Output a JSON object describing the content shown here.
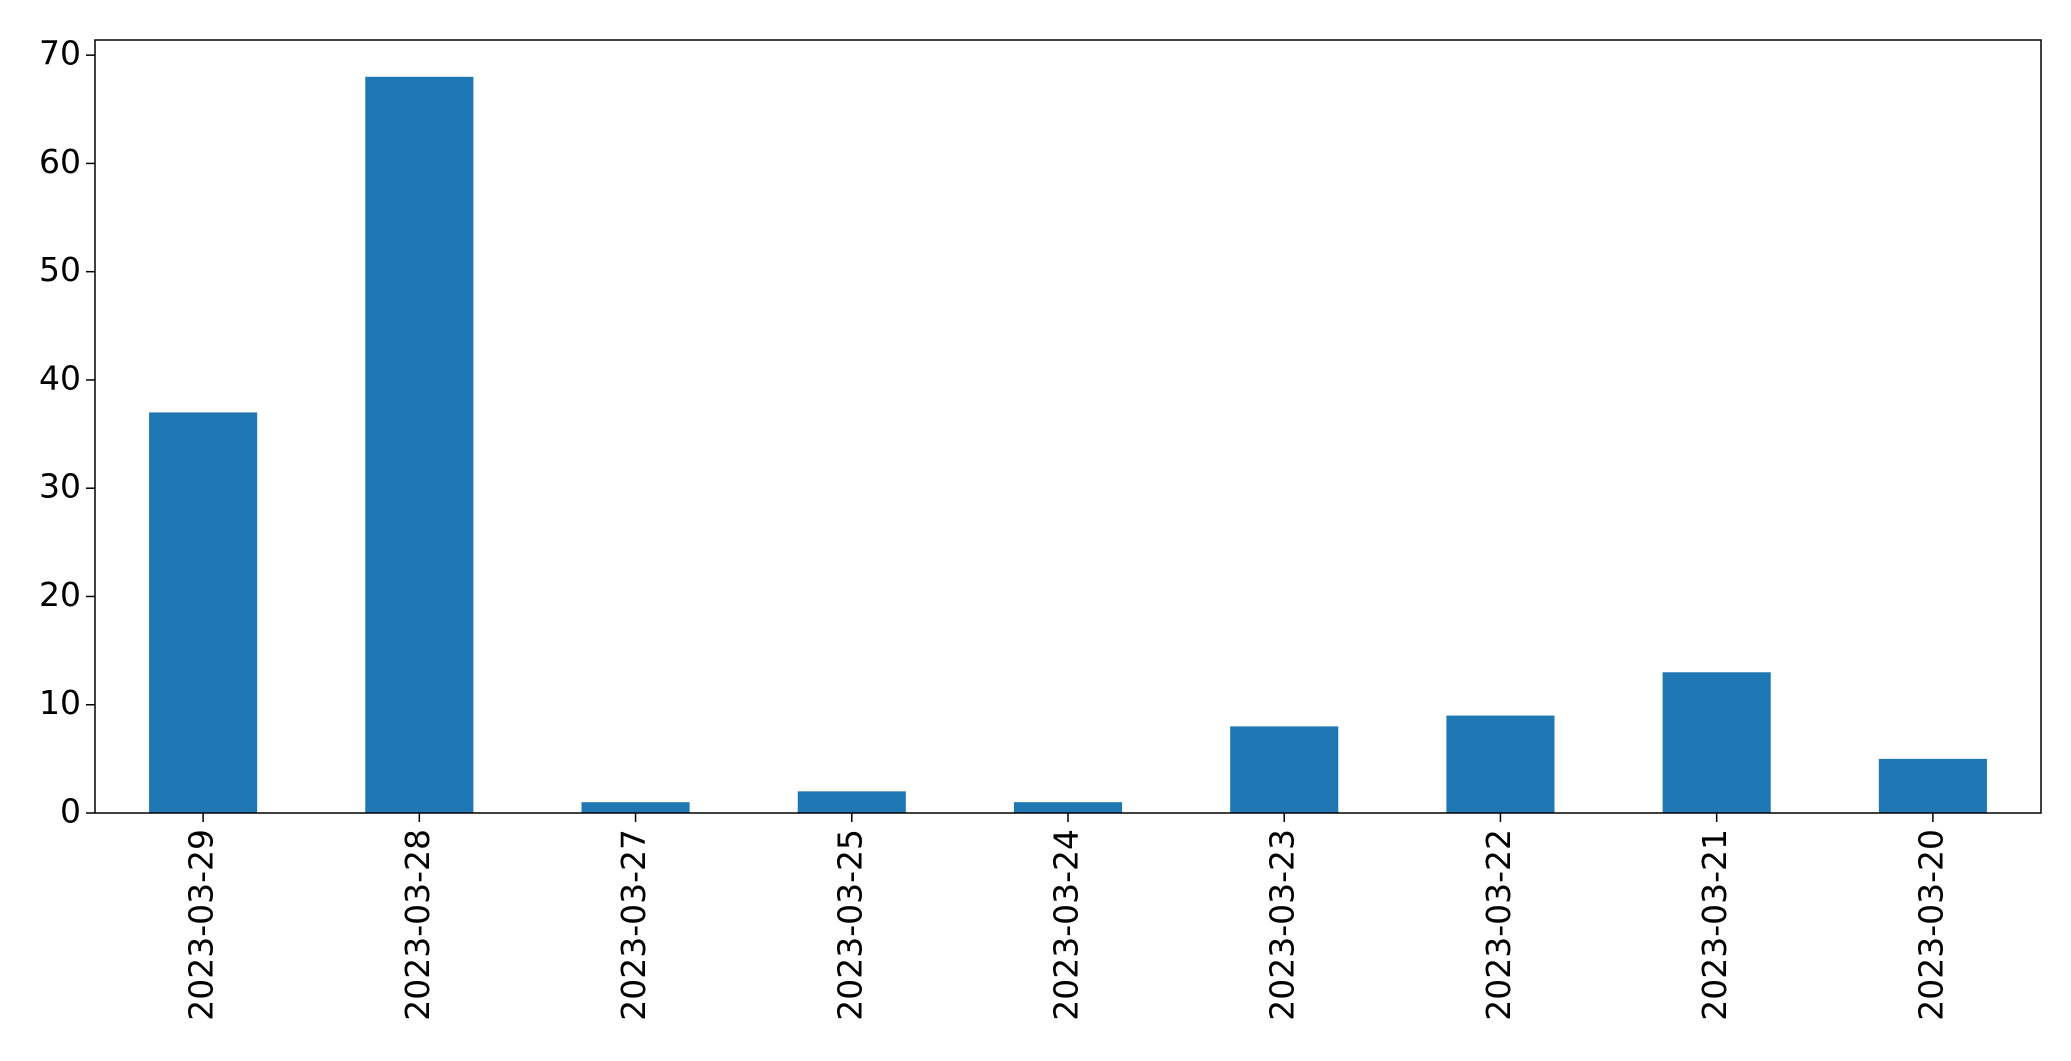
{
  "chart_data": {
    "type": "bar",
    "categories": [
      "2023-03-29",
      "2023-03-28",
      "2023-03-27",
      "2023-03-25",
      "2023-03-24",
      "2023-03-23",
      "2023-03-22",
      "2023-03-21",
      "2023-03-20"
    ],
    "values": [
      37,
      68,
      1,
      2,
      1,
      8,
      9,
      13,
      5
    ],
    "yticks": [
      0,
      10,
      20,
      30,
      40,
      50,
      60,
      70
    ],
    "ylim": [
      0,
      71.4
    ],
    "xlabel": "",
    "ylabel": "",
    "title": "",
    "grid": false,
    "legend": "none",
    "colors": {
      "bar": "#1f77b4",
      "axis": "#000000"
    }
  }
}
